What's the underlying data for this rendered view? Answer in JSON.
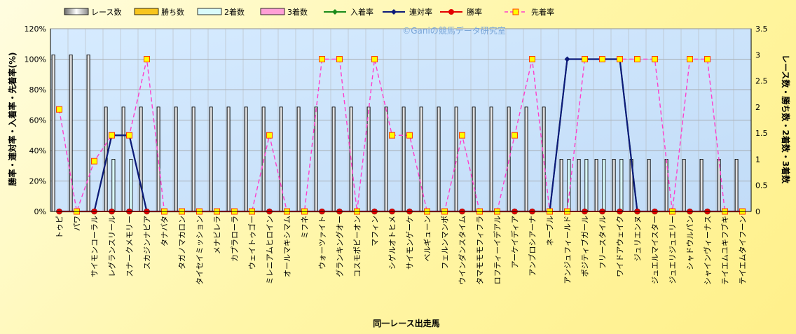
{
  "chart_data": {
    "type": "bar",
    "xlabel": "同一レース出走馬",
    "ylabel_left": "勝率・連対率・入着率・先着率(%)",
    "ylabel_right": "レース数・勝ち数・2着数・3着数",
    "watermark": "©Ganiの競馬データ研究室",
    "y_left_range": [
      0,
      120
    ],
    "y_left_ticks": [
      "0%",
      "20%",
      "40%",
      "60%",
      "80%",
      "100%",
      "120%"
    ],
    "y_right_range": [
      0,
      3.5
    ],
    "y_right_ticks": [
      "0",
      "0.5",
      "1",
      "1.5",
      "2",
      "2.5",
      "3",
      "3.5"
    ],
    "grid": true,
    "legend_position": "top",
    "colors": {
      "races": "#ffffff",
      "wins": "#f7c51e",
      "seconds": "#d9fbfb",
      "thirds": "#ff9fd6",
      "place_rate": "#1a8a1a",
      "rentai_rate": "#0d1a7a",
      "win_rate": "#e30000",
      "sench_rate": "#ff3ecb",
      "sench_marker": "#ffff00"
    },
    "legend": [
      {
        "key": "races",
        "label": "レース数",
        "kind": "bar"
      },
      {
        "key": "wins",
        "label": "勝ち数",
        "kind": "bar"
      },
      {
        "key": "seconds",
        "label": "2着数",
        "kind": "bar"
      },
      {
        "key": "thirds",
        "label": "3着数",
        "kind": "bar"
      },
      {
        "key": "place_rate",
        "label": "入着率",
        "kind": "line"
      },
      {
        "key": "rentai_rate",
        "label": "連対率",
        "kind": "line"
      },
      {
        "key": "win_rate",
        "label": "勝率",
        "kind": "line"
      },
      {
        "key": "sench_rate",
        "label": "先着率",
        "kind": "dash"
      }
    ],
    "categories": [
      "トゥピ",
      "パワ",
      "サイモンコーラル",
      "レグランスリール",
      "スナークメモリー",
      "スカジンナピア",
      "タナバタ",
      "タガノマカロン",
      "タイセイミッション",
      "メナビレラ",
      "カプラローラ",
      "ウェイトゥゴー",
      "ミレニアムヒロイン",
      "オールマキシマム",
      "ミフネ",
      "ウォーツァイト",
      "グランキングオー",
      "コスモポピーオン",
      "マフィン",
      "シゲルオトヒメ",
      "サイモンゲーケ",
      "ベルギューン",
      "フェルンマンボ",
      "ウインダンスタイム",
      "タマモモモフィフラ",
      "ロフティーイデアル",
      "アーケイディア",
      "アンブロシアーナ",
      "ネーブル",
      "アンジュフィールド",
      "ポジティブガール",
      "フリースタイル",
      "ワイドアウェイク",
      "ジュリエンヌ",
      "ジュエルマイスター",
      "ジュエリジュエリー",
      "シャドウルパン",
      "シャインヴィーナス",
      "テイエムユキフブキ",
      "テイエムタイフーン"
    ],
    "races": [
      3,
      3,
      3,
      2,
      2,
      2,
      2,
      2,
      2,
      2,
      2,
      2,
      2,
      2,
      2,
      2,
      2,
      2,
      2,
      2,
      2,
      2,
      2,
      2,
      2,
      2,
      2,
      2,
      2,
      1,
      1,
      1,
      1,
      1,
      1,
      1,
      1,
      1,
      1,
      1
    ],
    "wins": [
      0,
      0,
      0,
      0,
      0,
      0,
      0,
      0,
      0,
      0,
      0,
      0,
      0,
      0,
      0,
      0,
      0,
      0,
      0,
      0,
      0,
      0,
      0,
      0,
      0,
      0,
      0,
      0,
      0,
      0,
      0,
      0,
      0,
      0,
      0,
      0,
      0,
      0,
      0,
      0
    ],
    "seconds": [
      0,
      0,
      0,
      1,
      1,
      0,
      0,
      0,
      0,
      0,
      0,
      0,
      0,
      0,
      0,
      0,
      0,
      0,
      0,
      0,
      0,
      0,
      0,
      0,
      0,
      0,
      0,
      0,
      0,
      1,
      1,
      1,
      1,
      0,
      0,
      0,
      0,
      0,
      0,
      0
    ],
    "thirds": [
      0,
      0,
      0,
      0,
      0,
      0,
      0,
      0,
      0,
      0,
      0,
      0,
      0,
      0,
      0,
      0,
      0,
      0,
      0,
      0,
      0,
      0,
      0,
      0,
      0,
      0,
      0,
      0,
      0,
      0,
      0,
      0,
      0,
      0,
      0,
      0,
      0,
      0,
      0,
      0
    ],
    "win_rate": [
      0,
      0,
      0,
      0,
      0,
      0,
      0,
      0,
      0,
      0,
      0,
      0,
      0,
      0,
      0,
      0,
      0,
      0,
      0,
      0,
      0,
      0,
      0,
      0,
      0,
      0,
      0,
      0,
      0,
      0,
      0,
      0,
      0,
      0,
      0,
      0,
      0,
      0,
      0,
      0
    ],
    "rentai_rate": [
      0,
      0,
      0,
      50,
      50,
      0,
      0,
      0,
      0,
      0,
      0,
      0,
      0,
      0,
      0,
      0,
      0,
      0,
      0,
      0,
      0,
      0,
      0,
      0,
      0,
      0,
      0,
      0,
      0,
      100,
      100,
      100,
      100,
      0,
      0,
      0,
      0,
      0,
      0,
      0
    ],
    "place_rate": [
      0,
      0,
      0,
      50,
      50,
      0,
      0,
      0,
      0,
      0,
      0,
      0,
      0,
      0,
      0,
      0,
      0,
      0,
      0,
      0,
      0,
      0,
      0,
      0,
      0,
      0,
      0,
      0,
      0,
      100,
      100,
      100,
      100,
      0,
      0,
      0,
      0,
      0,
      0,
      0
    ],
    "sench_rate": [
      67,
      0,
      33,
      50,
      50,
      100,
      0,
      0,
      0,
      0,
      0,
      0,
      50,
      0,
      0,
      100,
      100,
      0,
      100,
      50,
      50,
      0,
      0,
      50,
      0,
      0,
      50,
      100,
      0,
      0,
      100,
      100,
      100,
      100,
      100,
      0,
      100,
      100,
      0,
      0
    ]
  }
}
